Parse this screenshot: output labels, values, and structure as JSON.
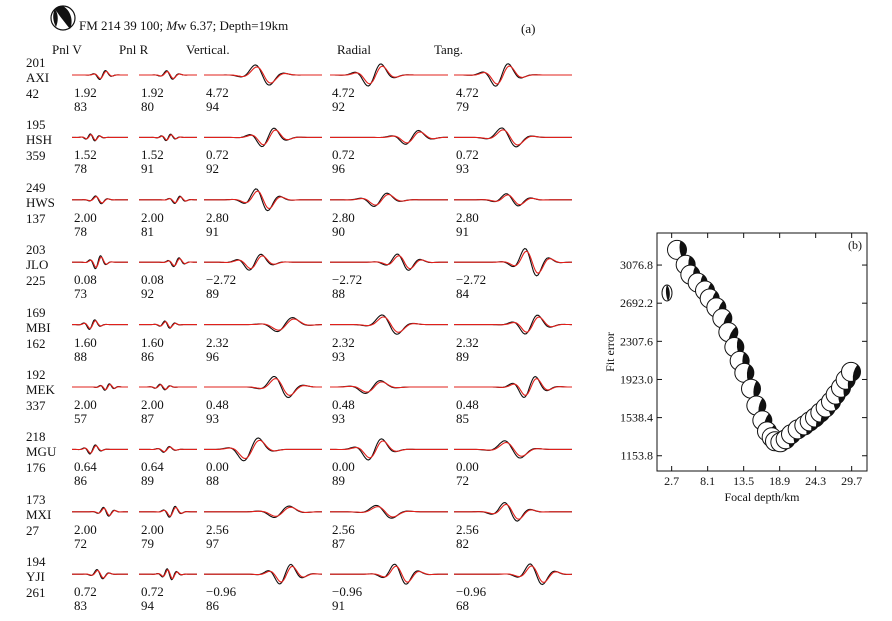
{
  "panel_a": {
    "header": "FM 214 39 100; Mw 6.37; Depth=19km",
    "header_prefix": "FM 214 39 100; ",
    "header_m": "M",
    "header_suffix": "w 6.37; Depth=19km",
    "label": "(a)",
    "columns": [
      "Pnl V",
      "Pnl R",
      "Vertical.",
      "Radial",
      "Tang."
    ],
    "stations": [
      {
        "code": "AXI",
        "azimuth": "201",
        "distance": "42",
        "shifts": [
          "1.92",
          "1.92",
          "4.72",
          "4.72",
          "4.72"
        ],
        "fits": [
          "83",
          "80",
          "94",
          "92",
          "79"
        ]
      },
      {
        "code": "HSH",
        "azimuth": "195",
        "distance": "359",
        "shifts": [
          "1.52",
          "1.52",
          "0.72",
          "0.72",
          "0.72"
        ],
        "fits": [
          "78",
          "91",
          "92",
          "96",
          "93"
        ]
      },
      {
        "code": "HWS",
        "azimuth": "249",
        "distance": "137",
        "shifts": [
          "2.00",
          "2.00",
          "2.80",
          "2.80",
          "2.80"
        ],
        "fits": [
          "78",
          "81",
          "91",
          "90",
          "91"
        ]
      },
      {
        "code": "JLO",
        "azimuth": "203",
        "distance": "225",
        "shifts": [
          "0.08",
          "0.08",
          "−2.72",
          "−2.72",
          "−2.72"
        ],
        "fits": [
          "73",
          "92",
          "89",
          "88",
          "84"
        ]
      },
      {
        "code": "MBI",
        "azimuth": "169",
        "distance": "162",
        "shifts": [
          "1.60",
          "1.60",
          "2.32",
          "2.32",
          "2.32"
        ],
        "fits": [
          "88",
          "86",
          "96",
          "93",
          "89"
        ]
      },
      {
        "code": "MEK",
        "azimuth": "192",
        "distance": "337",
        "shifts": [
          "2.00",
          "2.00",
          "0.48",
          "0.48",
          "0.48"
        ],
        "fits": [
          "57",
          "87",
          "93",
          "93",
          "85"
        ]
      },
      {
        "code": "MGU",
        "azimuth": "218",
        "distance": "176",
        "shifts": [
          "0.64",
          "0.64",
          "0.00",
          "0.00",
          "0.00"
        ],
        "fits": [
          "86",
          "89",
          "88",
          "89",
          "72"
        ]
      },
      {
        "code": "MXI",
        "azimuth": "173",
        "distance": "27",
        "shifts": [
          "2.00",
          "2.00",
          "2.56",
          "2.56",
          "2.56"
        ],
        "fits": [
          "72",
          "79",
          "97",
          "87",
          "82"
        ]
      },
      {
        "code": "YJI",
        "azimuth": "194",
        "distance": "261",
        "shifts": [
          "0.72",
          "0.72",
          "−0.96",
          "−0.96",
          "−0.96"
        ],
        "fits": [
          "83",
          "94",
          "86",
          "91",
          "68"
        ]
      }
    ],
    "colors": {
      "observed": "#111111",
      "synthetic": "#e0201b"
    }
  },
  "panel_b": {
    "label": "(b)",
    "chart_data": {
      "type": "scatter",
      "xlabel": "Focal depth/km",
      "ylabel": "Fit error",
      "x_ticks": [
        "2.7",
        "8.1",
        "13.5",
        "18.9",
        "24.3",
        "29.7"
      ],
      "y_ticks": [
        "1153.8",
        "1538.4",
        "1923.0",
        "2307.6",
        "2692.2",
        "3076.8"
      ],
      "xlim": [
        0.5,
        32
      ],
      "ylim": [
        1000,
        3400
      ],
      "x": [
        3.5,
        4.8,
        5.5,
        6.6,
        7.7,
        8.4,
        9.4,
        10.3,
        11.2,
        12.1,
        12.9,
        13.6,
        14.6,
        15.4,
        16.3,
        17.0,
        17.7,
        18.2,
        19.0,
        19.8,
        20.6,
        21.6,
        22.6,
        23.4,
        24.2,
        25.0,
        25.8,
        26.6,
        27.3,
        28.1,
        28.8,
        29.6
      ],
      "y": [
        3230,
        3080,
        2980,
        2900,
        2820,
        2740,
        2650,
        2540,
        2400,
        2250,
        2110,
        1990,
        1830,
        1660,
        1510,
        1400,
        1340,
        1300,
        1290,
        1320,
        1370,
        1420,
        1460,
        1500,
        1540,
        1590,
        1640,
        1700,
        1770,
        1840,
        1920,
        2000
      ],
      "markers": "focal-mechanism beachballs"
    }
  }
}
